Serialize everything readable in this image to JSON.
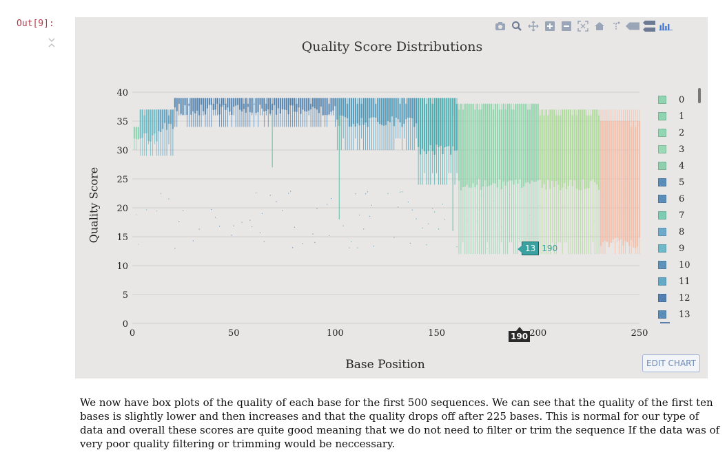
{
  "notebook": {
    "out_prompt": "Out[9]:"
  },
  "toolbar": {
    "icons": [
      "camera-icon",
      "zoom-icon",
      "pan-icon",
      "zoom-in-icon",
      "zoom-out-icon",
      "autoscale-icon",
      "home-icon",
      "spike-lines-icon",
      "hover-closest-icon",
      "hover-compare-icon",
      "plotly-logo-icon"
    ]
  },
  "chart_data": {
    "type": "box",
    "title": "Quality Score Distributions",
    "xlabel": "Base Position",
    "ylabel": "Quality Score",
    "xlim": [
      0,
      250
    ],
    "ylim": [
      0,
      42
    ],
    "x_ticks": [
      "0",
      "50",
      "100",
      "150",
      "200",
      "250"
    ],
    "y_ticks": [
      "0",
      "5",
      "10",
      "15",
      "20",
      "25",
      "30",
      "35",
      "40"
    ],
    "legend_entries": [
      "0",
      "1",
      "2",
      "3",
      "4",
      "5",
      "6",
      "7",
      "8",
      "9",
      "10",
      "11",
      "12",
      "13"
    ],
    "legend_colors": [
      "#8fd3b0",
      "#8fd3b0",
      "#93d6b4",
      "#9ad8b6",
      "#8fcfae",
      "#5b8db8",
      "#5b8db8",
      "#7ecbb4",
      "#6faacb",
      "#6fb8c8",
      "#5f92b8",
      "#64a9c6",
      "#5380b0",
      "#5b8db8"
    ],
    "grid": true,
    "regions": [
      {
        "x_start": 1,
        "x_end": 3,
        "q1": 32,
        "q3": 34,
        "whisker_low": 30,
        "whisker_high": 34,
        "color": "#7fd1a8"
      },
      {
        "x_start": 4,
        "x_end": 12,
        "q1": 32,
        "q3": 37,
        "whisker_low": 29,
        "whisker_high": 37,
        "color": "#5fb8c4"
      },
      {
        "x_start": 13,
        "x_end": 20,
        "q1": 34,
        "q3": 37,
        "whisker_low": 29,
        "whisker_high": 37,
        "color": "#4f97bb"
      },
      {
        "x_start": 21,
        "x_end": 100,
        "q1": 37,
        "q3": 39,
        "whisker_low": 34,
        "whisker_high": 39,
        "color": "#4177a8"
      },
      {
        "x_start": 101,
        "x_end": 140,
        "q1": 35,
        "q3": 39,
        "whisker_low": 30,
        "whisker_high": 39,
        "color": "#3f8fb3"
      },
      {
        "x_start": 141,
        "x_end": 160,
        "q1": 30,
        "q3": 39,
        "whisker_low": 24,
        "whisker_high": 39,
        "color": "#35a6a9"
      },
      {
        "x_start": 161,
        "x_end": 200,
        "q1": 24,
        "q3": 38,
        "whisker_low": 12,
        "whisker_high": 38,
        "color": "#85d1a4"
      },
      {
        "x_start": 201,
        "x_end": 230,
        "q1": 24,
        "q3": 37,
        "whisker_low": 12,
        "whisker_high": 37,
        "color": "#a6d98f"
      },
      {
        "x_start": 231,
        "x_end": 250,
        "q1": 14,
        "q3": 35,
        "whisker_low": 12,
        "whisker_high": 37,
        "color": "#f5b8a0"
      }
    ],
    "outlier_whiskers": [
      {
        "x": 69,
        "low": 27
      },
      {
        "x": 102,
        "low": 18
      },
      {
        "x": 103,
        "low": 30
      },
      {
        "x": 158,
        "low": 16
      }
    ],
    "hover": {
      "x": 190,
      "value": "13",
      "series": "190",
      "x_label": "190"
    }
  },
  "edit_button": {
    "label": "EDIT CHART"
  },
  "paragraph": {
    "text": "We now have box plots of the quality of each base for the first 500 sequences. We can see that the quality of the first ten bases is slightly lower and then increases and that the quality drops off after 225 bases. This is normal for our type of data and overall these scores are quite good meaning that we do not need to filter or trim the sequence If the data was of very poor quality filtering or trimming would be neccessary."
  }
}
